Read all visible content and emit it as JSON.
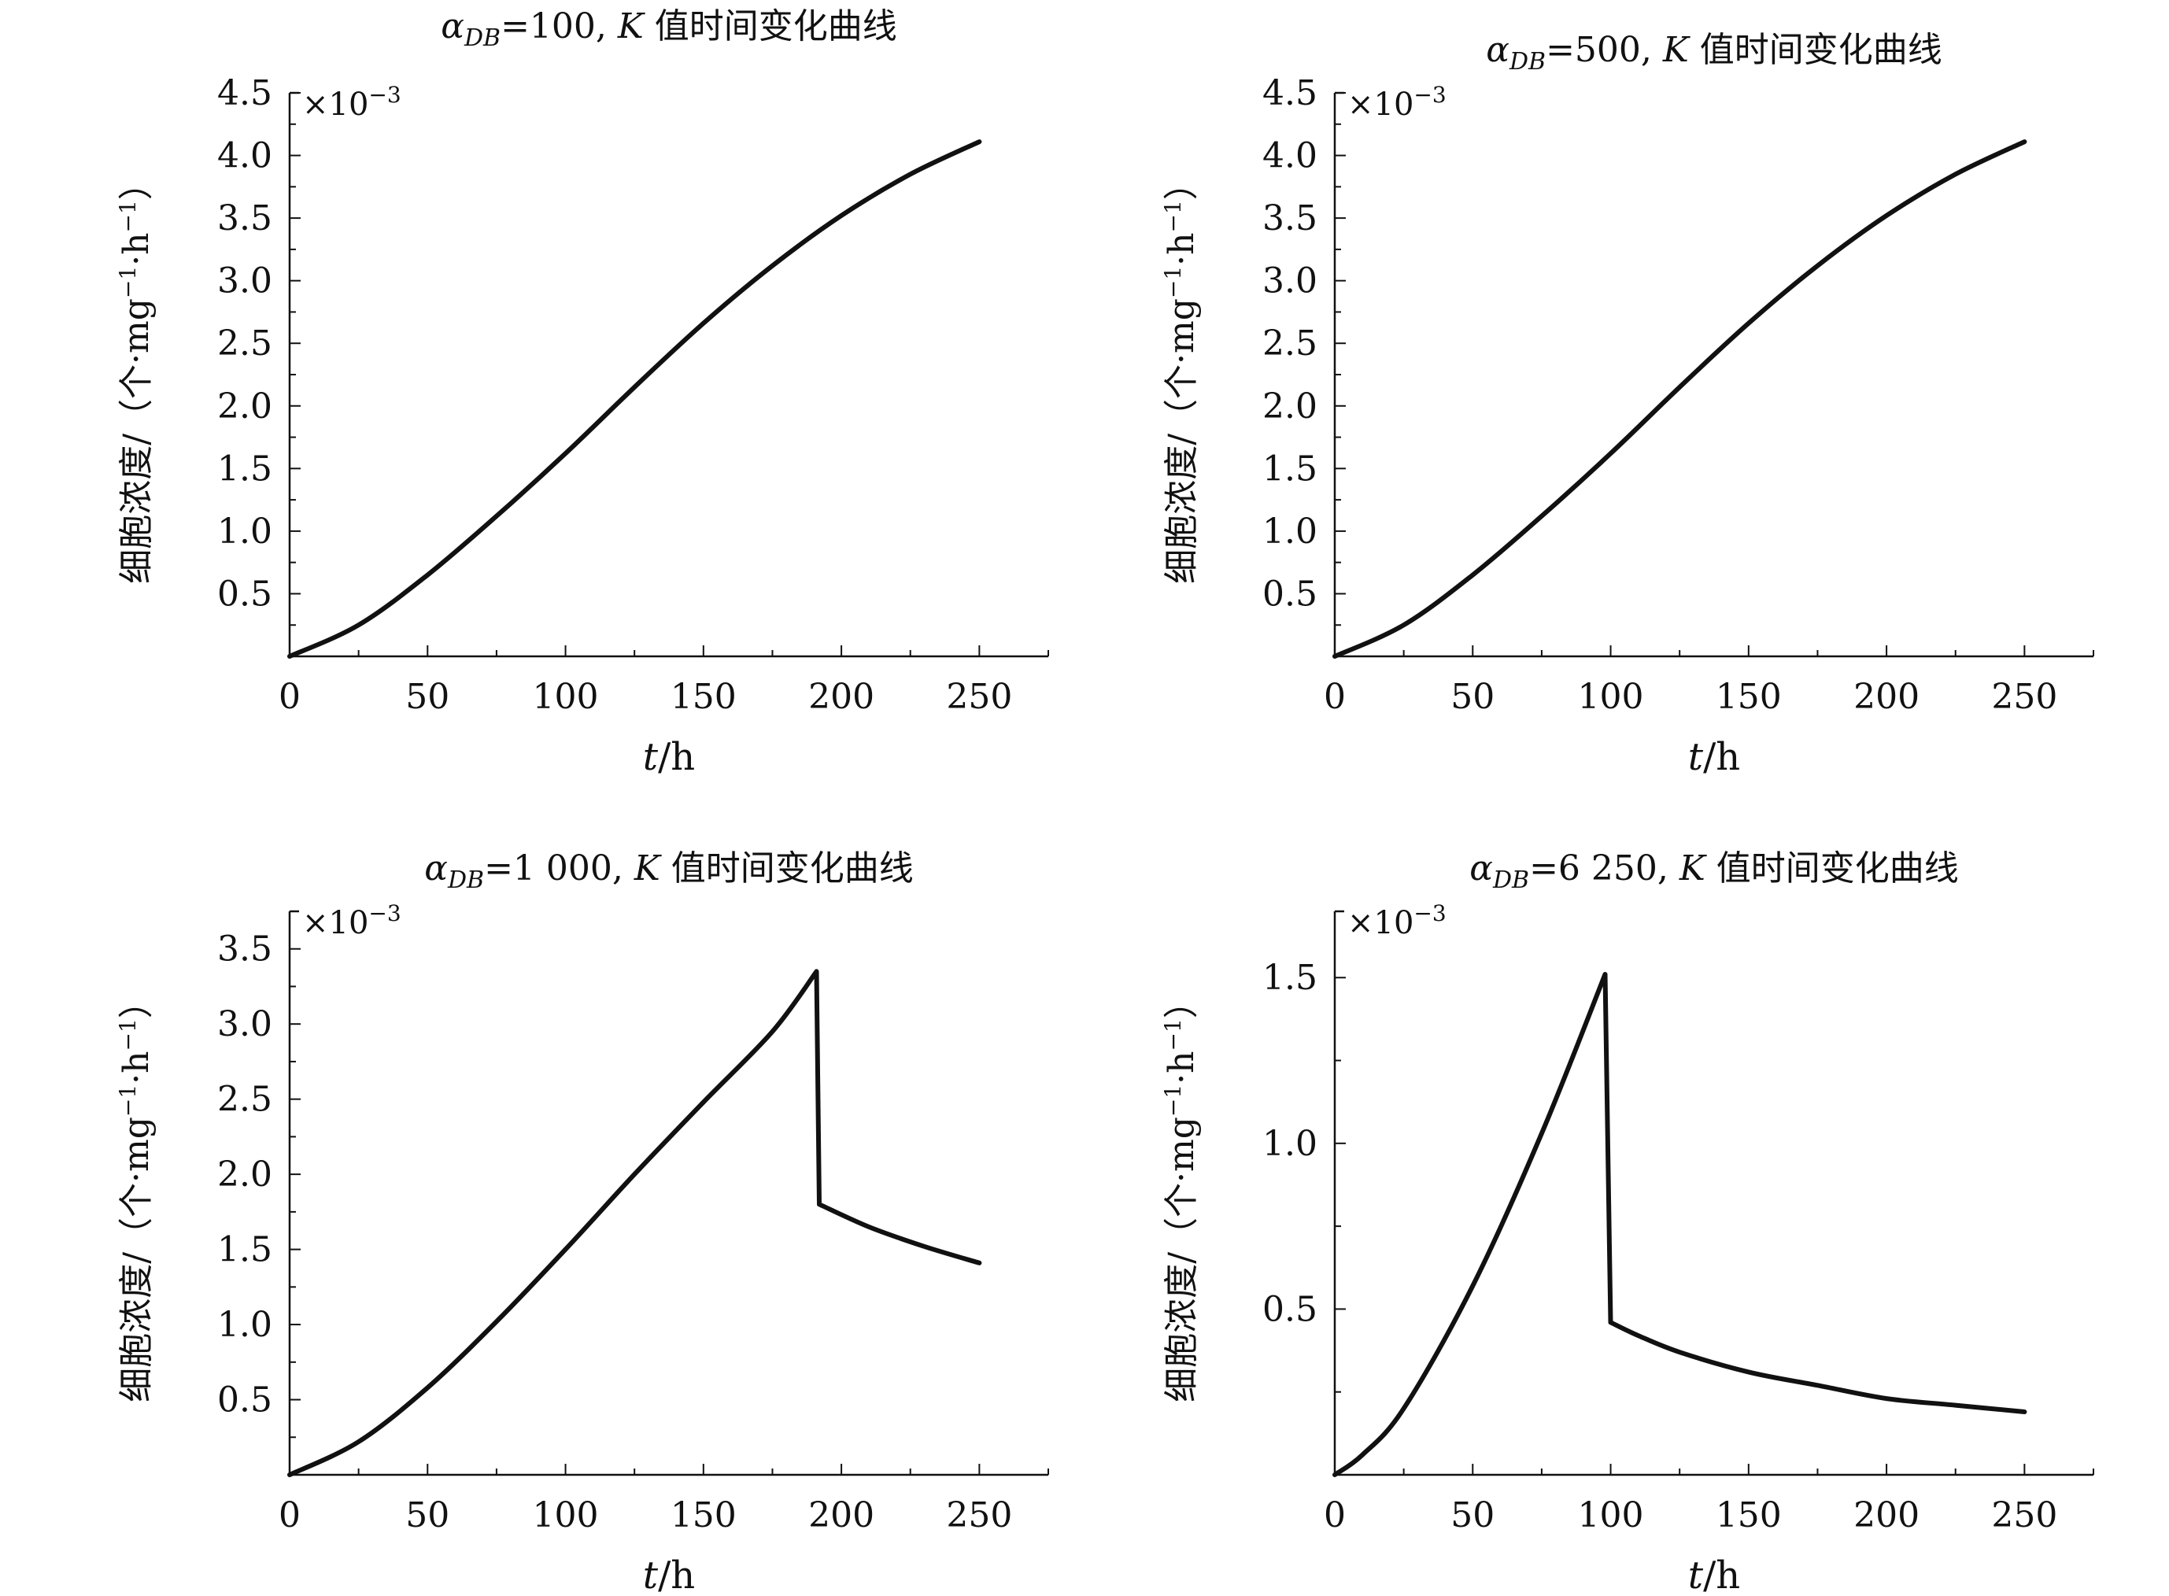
{
  "chart_data": [
    {
      "type": "line",
      "title": {
        "prefix": "α",
        "subscript": "DB",
        "value": "=100, ",
        "k": "K",
        "suffix": " 值时间变化曲线"
      },
      "xlabel": {
        "var": "t",
        "unit": "/h"
      },
      "ylabel": {
        "main": "细胞浓度/（个·mg",
        "sup1": "−1",
        "mid": "·h",
        "sup2": "−1",
        "end": "）"
      },
      "scale_label": "×10",
      "scale_exp": "−3",
      "xlim": [
        0,
        275
      ],
      "ylim": [
        0,
        4.5
      ],
      "x_ticks": [
        0,
        50,
        100,
        150,
        200,
        250
      ],
      "y_ticks": [
        0.5,
        1.0,
        1.5,
        2.0,
        2.5,
        3.0,
        3.5,
        4.0,
        4.5
      ],
      "y_tick_labels": [
        "0.5",
        "1.0",
        "1.5",
        "2.0",
        "2.5",
        "3.0",
        "3.5",
        "4.0",
        "4.5"
      ],
      "x": [
        0,
        25,
        50,
        75,
        100,
        125,
        150,
        175,
        200,
        225,
        250
      ],
      "y": [
        0,
        0.25,
        0.65,
        1.12,
        1.62,
        2.15,
        2.66,
        3.12,
        3.52,
        3.85,
        4.11
      ]
    },
    {
      "type": "line",
      "title": {
        "prefix": "α",
        "subscript": "DB",
        "value": "=500, ",
        "k": "K",
        "suffix": " 值时间变化曲线"
      },
      "xlabel": {
        "var": "t",
        "unit": "/h"
      },
      "ylabel": {
        "main": "细胞浓度/（个·mg",
        "sup1": "−1",
        "mid": "·h",
        "sup2": "−1",
        "end": "）"
      },
      "scale_label": "×10",
      "scale_exp": "−3",
      "xlim": [
        0,
        275
      ],
      "ylim": [
        0,
        4.5
      ],
      "x_ticks": [
        0,
        50,
        100,
        150,
        200,
        250
      ],
      "y_ticks": [
        0.5,
        1.0,
        1.5,
        2.0,
        2.5,
        3.0,
        3.5,
        4.0,
        4.5
      ],
      "y_tick_labels": [
        "0.5",
        "1.0",
        "1.5",
        "2.0",
        "2.5",
        "3.0",
        "3.5",
        "4.0",
        "4.5"
      ],
      "x": [
        0,
        25,
        50,
        75,
        100,
        125,
        150,
        175,
        200,
        225,
        250
      ],
      "y": [
        0,
        0.25,
        0.65,
        1.12,
        1.62,
        2.15,
        2.66,
        3.12,
        3.52,
        3.85,
        4.11
      ]
    },
    {
      "type": "line",
      "title": {
        "prefix": "α",
        "subscript": "DB",
        "value": "=1 000, ",
        "k": "K",
        "suffix": " 值时间变化曲线"
      },
      "xlabel": {
        "var": "t",
        "unit": "/h"
      },
      "ylabel": {
        "main": "细胞浓度/（个·mg",
        "sup1": "−1",
        "mid": "·h",
        "sup2": "−1",
        "end": "）"
      },
      "scale_label": "×10",
      "scale_exp": "−3",
      "xlim": [
        0,
        275
      ],
      "ylim": [
        0,
        3.75
      ],
      "x_ticks": [
        0,
        50,
        100,
        150,
        200,
        250
      ],
      "y_ticks": [
        0.5,
        1.0,
        1.5,
        2.0,
        2.5,
        3.0,
        3.5
      ],
      "y_tick_labels": [
        "0.5",
        "1.0",
        "1.5",
        "2.0",
        "2.5",
        "3.0",
        "3.5"
      ],
      "x": [
        0,
        25,
        50,
        75,
        100,
        125,
        150,
        175,
        191,
        192,
        210,
        230,
        250
      ],
      "y": [
        0,
        0.22,
        0.58,
        1.02,
        1.5,
        2.0,
        2.48,
        2.95,
        3.35,
        1.8,
        1.65,
        1.52,
        1.41
      ]
    },
    {
      "type": "line",
      "title": {
        "prefix": "α",
        "subscript": "DB",
        "value": "=6 250, ",
        "k": "K",
        "suffix": " 值时间变化曲线"
      },
      "xlabel": {
        "var": "t",
        "unit": "/h"
      },
      "ylabel": {
        "main": "细胞浓度/（个·mg",
        "sup1": "−1",
        "mid": "·h",
        "sup2": "−1",
        "end": "）"
      },
      "scale_label": "×10",
      "scale_exp": "−3",
      "xlim": [
        0,
        275
      ],
      "ylim": [
        0,
        1.7
      ],
      "x_ticks": [
        0,
        50,
        100,
        150,
        200,
        250
      ],
      "y_ticks": [
        0.5,
        1.0,
        1.5
      ],
      "y_tick_labels": [
        "0.5",
        "1.0",
        "1.5"
      ],
      "x": [
        0,
        10,
        25,
        50,
        75,
        98,
        100,
        110,
        125,
        150,
        175,
        200,
        225,
        250
      ],
      "y": [
        0,
        0.06,
        0.2,
        0.57,
        1.03,
        1.51,
        0.46,
        0.42,
        0.37,
        0.31,
        0.27,
        0.23,
        0.21,
        0.19
      ]
    }
  ]
}
